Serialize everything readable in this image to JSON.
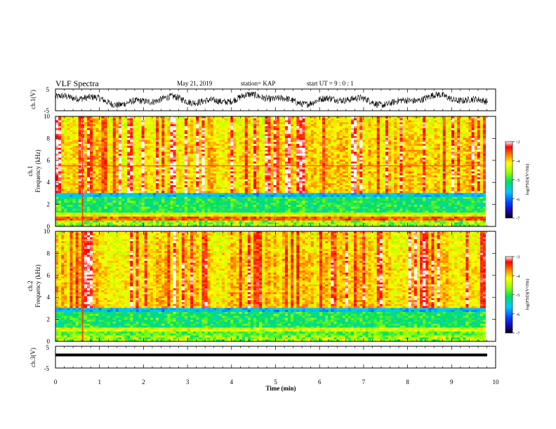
{
  "header": {
    "title": "VLF Spectra",
    "date": "May 21, 2019",
    "station": "station= KAP",
    "start": "start  UT =   9 : 0 : 1"
  },
  "chart_data": [
    {
      "type": "line",
      "panel": "ch1-waveform",
      "ylabel": "ch.1(V)",
      "ytick_labels": [
        "5",
        "-5"
      ],
      "ylim": [
        -5,
        5
      ],
      "xlim": [
        0,
        10
      ]
    },
    {
      "type": "heatmap",
      "panel": "ch1-spectrogram",
      "ylabel": "ch.1\nFrequency (kHz)",
      "ytick_labels": [
        "0",
        "2",
        "4",
        "6",
        "8",
        "10"
      ],
      "ylim": [
        0,
        10
      ],
      "xlim": [
        0,
        10
      ],
      "colorbar": {
        "label": "log(PSD)(V²/Hz)",
        "tick_labels": [
          "-3",
          "-4",
          "-5",
          "-6",
          "-7"
        ],
        "range": [
          -7,
          -3
        ]
      }
    },
    {
      "type": "heatmap",
      "panel": "ch2-spectrogram",
      "ylabel": "ch.2\nFrequency (kHz)",
      "ytick_labels": [
        "0",
        "2",
        "4",
        "6",
        "8",
        "10"
      ],
      "ylim": [
        0,
        10
      ],
      "xlim": [
        0,
        10
      ],
      "colorbar": {
        "label": "log(PSD)(V²/Hz)",
        "tick_labels": [
          "-3",
          "-4",
          "-5",
          "-6",
          "-7"
        ],
        "range": [
          -7,
          -3
        ]
      }
    },
    {
      "type": "line",
      "panel": "ch3-waveform",
      "ylabel": "ch.3(V)",
      "ytick_labels": [
        "5",
        "-5"
      ],
      "ylim": [
        -5,
        5
      ],
      "xlim": [
        0,
        10
      ]
    }
  ],
  "xaxis": {
    "label": "Time (min)",
    "tick_labels": [
      "0",
      "1",
      "2",
      "3",
      "4",
      "5",
      "6",
      "7",
      "8",
      "9",
      "10"
    ]
  }
}
